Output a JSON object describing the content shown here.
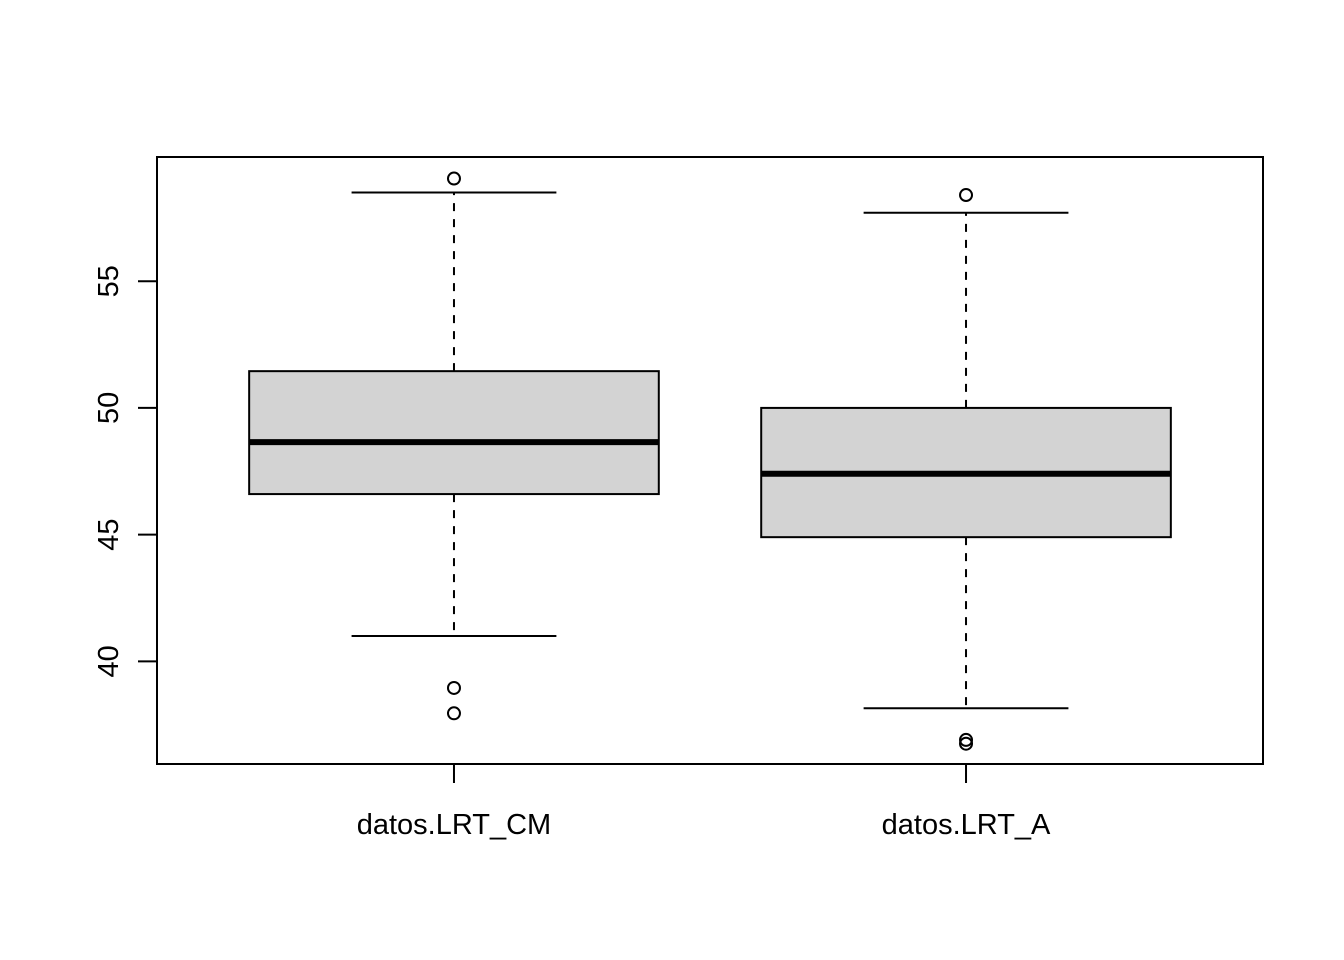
{
  "chart_data": {
    "type": "boxplot",
    "categories": [
      "datos.LRT_CM",
      "datos.LRT_A"
    ],
    "boxes": [
      {
        "category": "datos.LRT_CM",
        "whisker_low": 41.0,
        "q1": 46.6,
        "median": 48.65,
        "q3": 51.45,
        "whisker_high": 58.5,
        "outliers": [
          59.05,
          38.95,
          37.95
        ]
      },
      {
        "category": "datos.LRT_A",
        "whisker_low": 38.15,
        "q1": 44.9,
        "median": 47.4,
        "q3": 50.0,
        "whisker_high": 57.7,
        "outliers": [
          58.4,
          36.9,
          36.75
        ]
      }
    ],
    "yticks": [
      40,
      45,
      50,
      55
    ],
    "ylim": [
      35.95,
      59.9
    ],
    "grid": false,
    "box_fill": "#d3d3d3",
    "line_color": "#000000"
  }
}
